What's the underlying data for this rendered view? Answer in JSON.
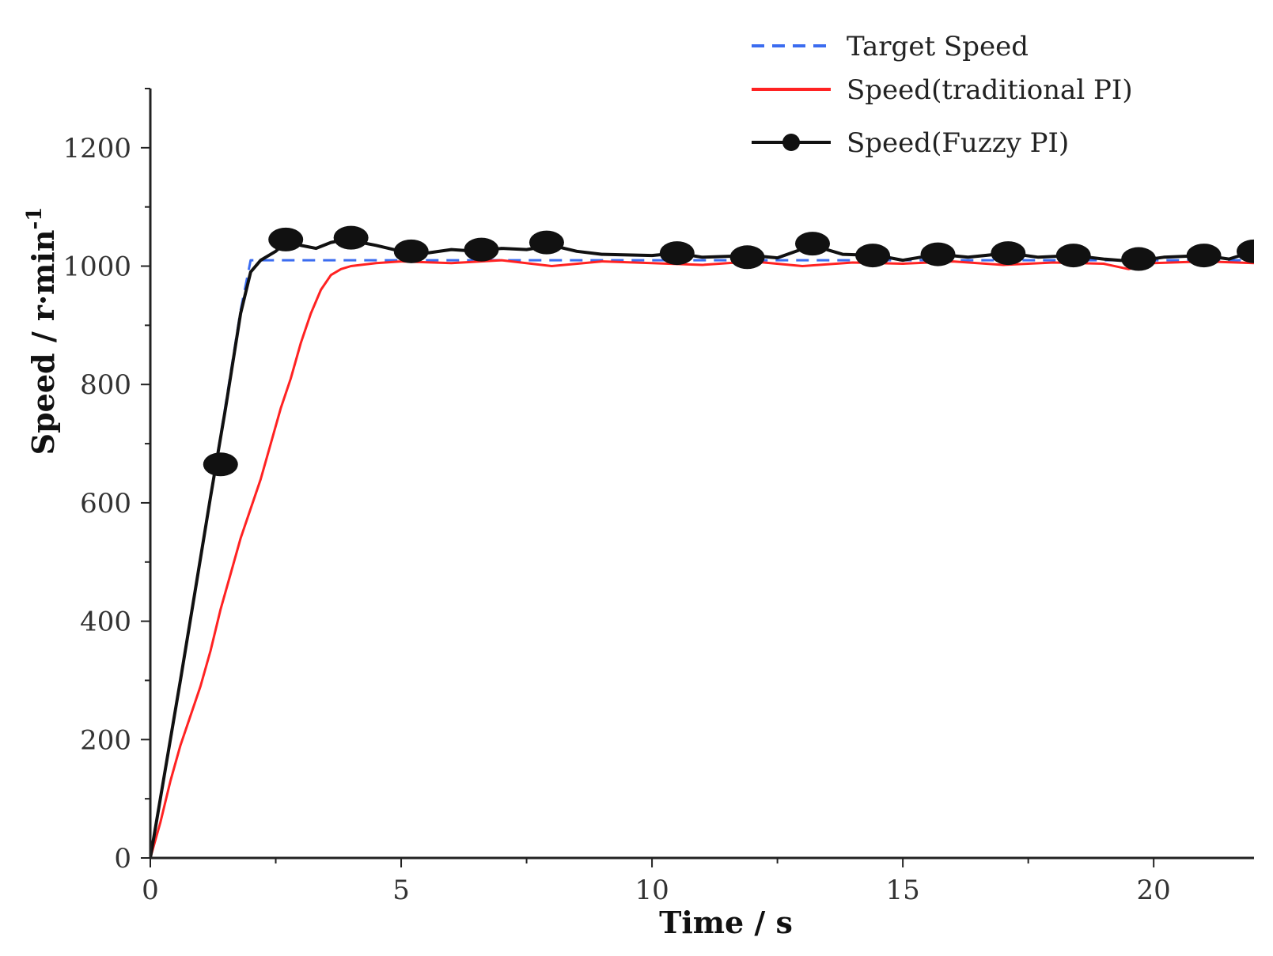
{
  "chart_data": {
    "type": "line",
    "title": "",
    "xlabel": "Time / s",
    "ylabel": "Speed / r·min",
    "ylabel_sup": "-1",
    "xlim": [
      0,
      22
    ],
    "ylim": [
      0,
      1300
    ],
    "x_ticks": [
      0,
      5,
      10,
      15,
      20
    ],
    "y_ticks": [
      0,
      200,
      400,
      600,
      800,
      1000,
      1200
    ],
    "grid": false,
    "legend_position": "top-right",
    "series": [
      {
        "name": "Target Speed",
        "style": "dashed",
        "color": "#3b6cf0",
        "x": [
          0,
          0.3,
          0.6,
          0.9,
          1.2,
          1.5,
          1.8,
          2.0,
          2.5,
          3,
          4,
          5,
          6,
          8,
          10,
          12,
          14,
          16,
          18,
          20,
          22
        ],
        "y": [
          0,
          150,
          300,
          455,
          610,
          765,
          925,
          1010,
          1010,
          1010,
          1010,
          1010,
          1010,
          1010,
          1010,
          1010,
          1010,
          1010,
          1010,
          1010,
          1010
        ]
      },
      {
        "name": "Speed(traditional PI)",
        "style": "solid",
        "color": "#ff2222",
        "x": [
          0,
          0.2,
          0.4,
          0.6,
          0.8,
          1.0,
          1.2,
          1.4,
          1.6,
          1.8,
          2.0,
          2.2,
          2.4,
          2.6,
          2.8,
          3.0,
          3.2,
          3.4,
          3.6,
          3.8,
          4.0,
          4.5,
          5,
          6,
          7,
          8,
          9,
          10,
          11,
          12,
          13,
          14,
          15,
          16,
          17,
          18,
          19,
          19.5,
          20,
          21,
          22
        ],
        "y": [
          0,
          60,
          130,
          190,
          240,
          290,
          350,
          420,
          480,
          540,
          590,
          640,
          700,
          760,
          810,
          870,
          920,
          960,
          985,
          995,
          1000,
          1005,
          1008,
          1005,
          1010,
          1000,
          1008,
          1005,
          1002,
          1008,
          1000,
          1006,
          1004,
          1008,
          1002,
          1006,
          1004,
          995,
          1005,
          1008,
          1005
        ]
      },
      {
        "name": "Speed(Fuzzy PI)",
        "style": "solid-marker",
        "color": "#111111",
        "x": [
          0,
          0.3,
          0.6,
          0.9,
          1.2,
          1.5,
          1.8,
          2.0,
          2.2,
          2.5,
          2.7,
          3.0,
          3.3,
          3.6,
          3.9,
          4.2,
          4.5,
          5,
          5.5,
          6,
          6.5,
          7,
          7.5,
          8,
          8.5,
          9,
          10,
          10.5,
          11,
          12,
          12.5,
          13.2,
          13.8,
          14.5,
          15,
          15.7,
          16.3,
          17.1,
          17.7,
          18.4,
          19,
          19.6,
          20.2,
          21,
          21.5,
          22
        ],
        "y": [
          0,
          150,
          300,
          455,
          610,
          760,
          920,
          990,
          1010,
          1025,
          1040,
          1035,
          1030,
          1040,
          1045,
          1040,
          1035,
          1025,
          1022,
          1028,
          1025,
          1030,
          1028,
          1035,
          1025,
          1020,
          1018,
          1022,
          1015,
          1018,
          1014,
          1035,
          1020,
          1018,
          1010,
          1020,
          1015,
          1022,
          1015,
          1018,
          1012,
          1008,
          1015,
          1018,
          1012,
          1025
        ]
      }
    ],
    "markers": {
      "series": "Speed(Fuzzy PI)",
      "x": [
        1.4,
        2.7,
        4.0,
        5.2,
        6.6,
        7.9,
        10.5,
        11.9,
        13.2,
        14.4,
        15.7,
        17.1,
        18.4,
        19.7,
        21.0,
        22.0
      ],
      "y": [
        665,
        1045,
        1048,
        1025,
        1028,
        1040,
        1022,
        1015,
        1038,
        1018,
        1020,
        1022,
        1018,
        1012,
        1018,
        1025
      ]
    }
  }
}
